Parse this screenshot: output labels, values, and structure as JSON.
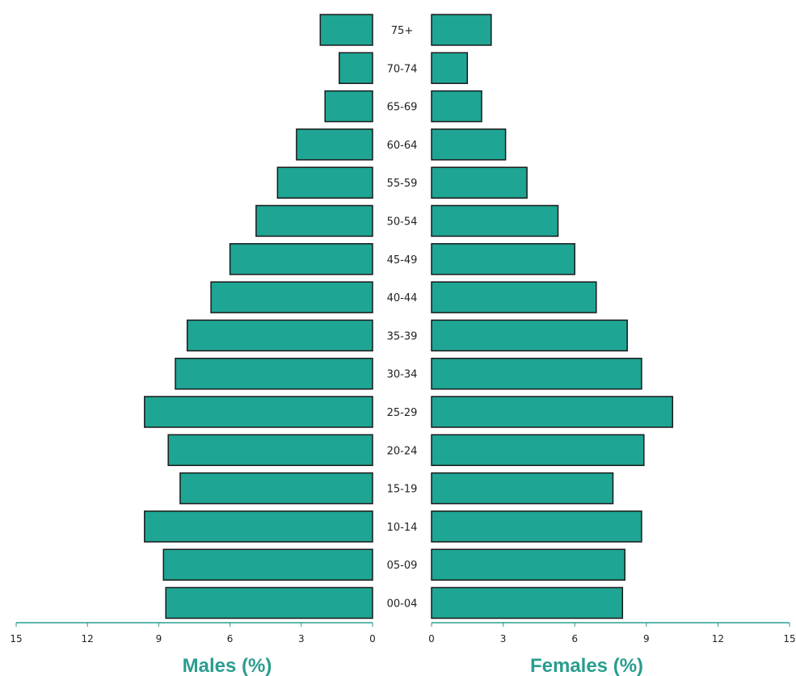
{
  "chart_data": {
    "type": "bar",
    "subtype": "population-pyramid",
    "categories": [
      "75+",
      "70-74",
      "65-69",
      "60-64",
      "55-59",
      "50-54",
      "45-49",
      "40-44",
      "35-39",
      "30-34",
      "25-29",
      "20-24",
      "15-19",
      "10-14",
      "05-09",
      "00-04"
    ],
    "series": [
      {
        "name": "Males (%)",
        "side": "left",
        "values": [
          2.2,
          1.4,
          2.0,
          3.2,
          4.0,
          4.9,
          6.0,
          6.8,
          7.8,
          8.3,
          9.6,
          8.6,
          8.1,
          9.6,
          8.8,
          8.7
        ]
      },
      {
        "name": "Females (%)",
        "side": "right",
        "values": [
          2.5,
          1.5,
          2.1,
          3.1,
          4.0,
          5.3,
          6.0,
          6.9,
          8.2,
          8.8,
          10.1,
          8.9,
          7.6,
          8.8,
          8.1,
          8.0
        ]
      }
    ],
    "left_axis": {
      "label": "Males (%)",
      "ticks": [
        "15",
        "12",
        "9",
        "6",
        "3",
        "0"
      ],
      "tick_values": [
        15,
        12,
        9,
        6,
        3,
        0
      ],
      "range": [
        0,
        15
      ],
      "reversed": true
    },
    "right_axis": {
      "label": "Females (%)",
      "ticks": [
        "0",
        "3",
        "6",
        "9",
        "12",
        "15"
      ],
      "tick_values": [
        0,
        3,
        6,
        9,
        12,
        15
      ],
      "range": [
        0,
        15
      ]
    },
    "grid": false,
    "colors": {
      "bar_fill": "#1fa594",
      "bar_stroke": "#1a1a1a",
      "axis": "#2a9d8f",
      "axis_title": "#2a9d8f",
      "text": "#222222"
    }
  }
}
